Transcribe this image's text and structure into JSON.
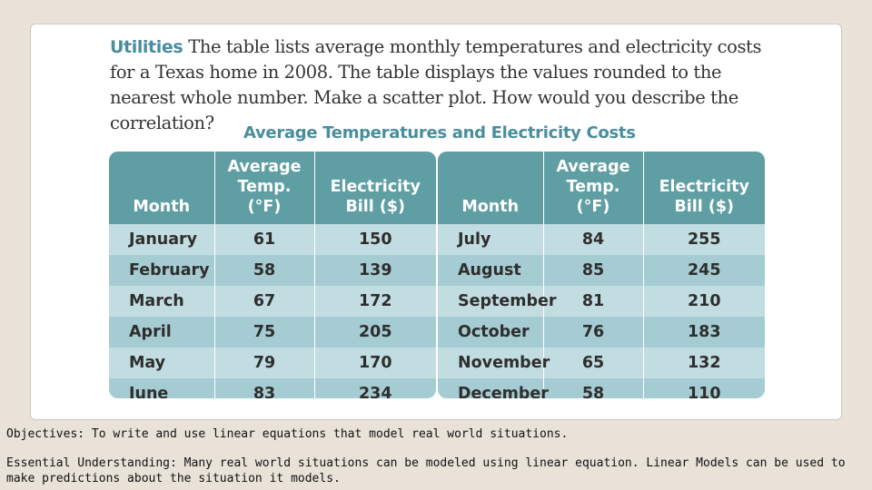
{
  "problem": {
    "lead": "Utilities",
    "text": "The table lists average monthly temperatures and electricity costs for a Texas home in 2008. The table displays the values rounded to the nearest whole number. Make a scatter plot. How would you describe the correlation?"
  },
  "table_title": "Average Temperatures and Electricity Costs",
  "headers": {
    "month": "Month",
    "temp": "Average Temp. (°F)",
    "bill": "Electricity Bill ($)"
  },
  "left_rows": [
    {
      "month": "January",
      "temp": "61",
      "bill": "150"
    },
    {
      "month": "February",
      "temp": "58",
      "bill": "139"
    },
    {
      "month": "March",
      "temp": "67",
      "bill": "172"
    },
    {
      "month": "April",
      "temp": "75",
      "bill": "205"
    },
    {
      "month": "May",
      "temp": "79",
      "bill": "170"
    },
    {
      "month": "June",
      "temp": "83",
      "bill": "234"
    }
  ],
  "right_rows": [
    {
      "month": "July",
      "temp": "84",
      "bill": "255"
    },
    {
      "month": "August",
      "temp": "85",
      "bill": "245"
    },
    {
      "month": "September",
      "temp": "81",
      "bill": "210"
    },
    {
      "month": "October",
      "temp": "76",
      "bill": "183"
    },
    {
      "month": "November",
      "temp": "65",
      "bill": "132"
    },
    {
      "month": "December",
      "temp": "58",
      "bill": "110"
    }
  ],
  "objectives": "Objectives: To write and use linear equations that model real world situations.",
  "essential": "Essential Understanding: Many real world situations can be modeled using  linear equation.  Linear Models can be used to make predictions about the situation it models."
}
